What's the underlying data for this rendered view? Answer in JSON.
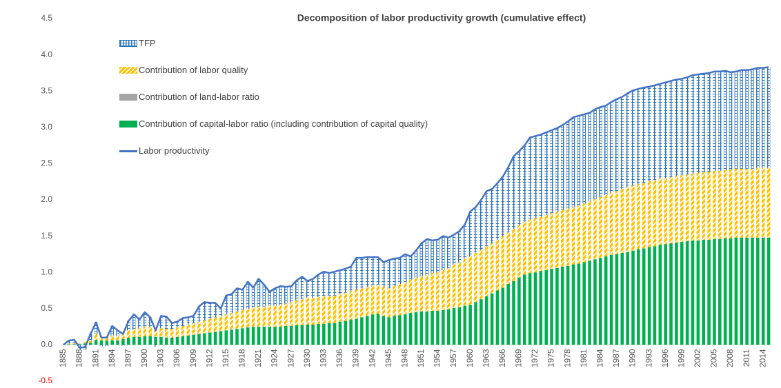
{
  "chart_data": {
    "type": "stacked_bar_line",
    "title": "Decomposition of labor productivity growth (cumulative effect)",
    "categories": [
      1885,
      null,
      null,
      1888,
      null,
      null,
      1891,
      null,
      null,
      1894,
      null,
      null,
      1897,
      null,
      null,
      1900,
      null,
      null,
      1903,
      null,
      null,
      1906,
      null,
      null,
      1909,
      null,
      null,
      1912,
      null,
      null,
      1915,
      null,
      null,
      1918,
      null,
      null,
      1921,
      null,
      null,
      1924,
      null,
      null,
      1927,
      null,
      null,
      1930,
      null,
      null,
      1933,
      null,
      null,
      1936,
      null,
      null,
      1939,
      null,
      null,
      1942,
      null,
      null,
      1945,
      null,
      null,
      1948,
      null,
      null,
      1951,
      null,
      null,
      1954,
      null,
      null,
      1957,
      null,
      null,
      1960,
      null,
      null,
      1963,
      null,
      null,
      1966,
      null,
      null,
      1969,
      null,
      null,
      1972,
      null,
      null,
      1975,
      null,
      null,
      1978,
      null,
      null,
      1981,
      null,
      null,
      1984,
      null,
      null,
      1987,
      null,
      null,
      1990,
      null,
      null,
      1993,
      null,
      null,
      1996,
      null,
      null,
      1999,
      null,
      null,
      2002,
      null,
      null,
      2005,
      null,
      null,
      2008,
      null,
      null,
      2011,
      null,
      null,
      2014,
      null
    ],
    "series": [
      {
        "name": "TFP",
        "type": "bar",
        "pattern": "grid",
        "color": "#2e75b6",
        "values": [
          0,
          0.04,
          0.05,
          -0.06,
          -0.07,
          0.09,
          0.16,
          -0.02,
          -0.02,
          0.13,
          0.08,
          -0.01,
          0.13,
          0.2,
          0.12,
          0.2,
          0.13,
          -0.03,
          0.17,
          0.17,
          0.08,
          0.08,
          0.11,
          0.1,
          0.1,
          0.21,
          0.25,
          0.22,
          0.2,
          0.1,
          0.26,
          0.26,
          0.32,
          0.28,
          0.37,
          0.27,
          0.38,
          0.3,
          0.19,
          0.24,
          0.26,
          0.23,
          0.22,
          0.28,
          0.31,
          0.23,
          0.26,
          0.31,
          0.34,
          0.31,
          0.33,
          0.33,
          0.33,
          0.34,
          0.44,
          0.42,
          0.41,
          0.39,
          0.38,
          0.34,
          0.39,
          0.38,
          0.36,
          0.39,
          0.32,
          0.38,
          0.45,
          0.5,
          0.45,
          0.45,
          0.47,
          0.42,
          0.41,
          0.43,
          0.47,
          0.62,
          0.63,
          0.69,
          0.76,
          0.75,
          0.78,
          0.82,
          0.9,
          1.0,
          1.02,
          1.05,
          1.13,
          1.13,
          1.13,
          1.14,
          1.14,
          1.15,
          1.17,
          1.2,
          1.24,
          1.24,
          1.23,
          1.22,
          1.24,
          1.24,
          1.23,
          1.25,
          1.27,
          1.27,
          1.3,
          1.31,
          1.31,
          1.32,
          1.3,
          1.31,
          1.31,
          1.32,
          1.33,
          1.33,
          1.33,
          1.34,
          1.36,
          1.36,
          1.36,
          1.36,
          1.37,
          1.37,
          1.37,
          1.34,
          1.34,
          1.36,
          1.36,
          1.37,
          1.38,
          1.38,
          1.39
        ]
      },
      {
        "name": "Contribution of labor quality",
        "type": "bar",
        "pattern": "diagonal",
        "color": "#ffc000",
        "values": [
          0,
          0.01,
          0.01,
          0.01,
          0.02,
          0.03,
          0.08,
          0.06,
          0.06,
          0.07,
          0.06,
          0.08,
          0.1,
          0.11,
          0.12,
          0.13,
          0.13,
          0.12,
          0.12,
          0.12,
          0.12,
          0.13,
          0.14,
          0.15,
          0.16,
          0.17,
          0.18,
          0.19,
          0.2,
          0.21,
          0.22,
          0.23,
          0.24,
          0.25,
          0.26,
          0.27,
          0.28,
          0.28,
          0.29,
          0.29,
          0.3,
          0.31,
          0.33,
          0.34,
          0.36,
          0.37,
          0.37,
          0.37,
          0.38,
          0.38,
          0.38,
          0.38,
          0.39,
          0.39,
          0.4,
          0.4,
          0.4,
          0.4,
          0.4,
          0.4,
          0.4,
          0.41,
          0.43,
          0.44,
          0.46,
          0.47,
          0.49,
          0.5,
          0.52,
          0.53,
          0.55,
          0.57,
          0.6,
          0.62,
          0.65,
          0.67,
          0.68,
          0.68,
          0.69,
          0.69,
          0.7,
          0.71,
          0.71,
          0.72,
          0.72,
          0.73,
          0.74,
          0.75,
          0.75,
          0.76,
          0.77,
          0.78,
          0.78,
          0.79,
          0.79,
          0.8,
          0.81,
          0.82,
          0.83,
          0.84,
          0.85,
          0.86,
          0.87,
          0.88,
          0.89,
          0.9,
          0.9,
          0.9,
          0.91,
          0.91,
          0.91,
          0.91,
          0.91,
          0.92,
          0.92,
          0.92,
          0.92,
          0.93,
          0.93,
          0.94,
          0.94,
          0.94,
          0.94,
          0.95,
          0.95,
          0.95,
          0.95,
          0.95,
          0.96,
          0.96,
          0.96
        ]
      },
      {
        "name": "Contribution of land-labor ratio",
        "type": "bar",
        "color": "#a5a5a5",
        "values": [
          0,
          0,
          0,
          0,
          0,
          0,
          0,
          0,
          0,
          0,
          0,
          0,
          0,
          0,
          0,
          0,
          0,
          0,
          0,
          0,
          0,
          0,
          0,
          0,
          0,
          0,
          0,
          0,
          0,
          0,
          0,
          0,
          0,
          0,
          0,
          0,
          0,
          0,
          0,
          0,
          0,
          0,
          0,
          0,
          0,
          0,
          0,
          0,
          0,
          0,
          0,
          0,
          0,
          0,
          0,
          0,
          0,
          0,
          0,
          0,
          0,
          0,
          0,
          0,
          0,
          0,
          0,
          0,
          0,
          0,
          0,
          0,
          0,
          0,
          0,
          0,
          0,
          0,
          0,
          0,
          0,
          0,
          0,
          0,
          0,
          0,
          0,
          0,
          0,
          0,
          0,
          0,
          0,
          0,
          0,
          0,
          0,
          0,
          0,
          0,
          0,
          0,
          0,
          0,
          0,
          0,
          0,
          0,
          0,
          0,
          0,
          0,
          0,
          0,
          0,
          0,
          0,
          0,
          0,
          0,
          0,
          0,
          0,
          0,
          0,
          0,
          0,
          0,
          0,
          0,
          0
        ]
      },
      {
        "name": "Contribution of capital-labor ratio (including contribution of capital quality)",
        "type": "bar",
        "color": "#00b050",
        "values": [
          0,
          0.01,
          0.01,
          0.01,
          0.02,
          0.03,
          0.07,
          0.06,
          0.06,
          0.06,
          0.06,
          0.08,
          0.1,
          0.11,
          0.11,
          0.12,
          0.12,
          0.11,
          0.11,
          0.1,
          0.1,
          0.11,
          0.12,
          0.13,
          0.14,
          0.15,
          0.16,
          0.17,
          0.18,
          0.19,
          0.2,
          0.21,
          0.22,
          0.23,
          0.24,
          0.25,
          0.25,
          0.25,
          0.25,
          0.25,
          0.25,
          0.26,
          0.26,
          0.27,
          0.27,
          0.28,
          0.28,
          0.29,
          0.29,
          0.3,
          0.3,
          0.32,
          0.33,
          0.35,
          0.36,
          0.38,
          0.4,
          0.42,
          0.43,
          0.4,
          0.38,
          0.4,
          0.41,
          0.42,
          0.44,
          0.45,
          0.46,
          0.46,
          0.47,
          0.47,
          0.48,
          0.49,
          0.51,
          0.52,
          0.54,
          0.55,
          0.59,
          0.63,
          0.67,
          0.71,
          0.75,
          0.79,
          0.84,
          0.88,
          0.93,
          0.97,
          0.99,
          1.0,
          1.02,
          1.03,
          1.05,
          1.06,
          1.08,
          1.09,
          1.11,
          1.12,
          1.14,
          1.16,
          1.18,
          1.2,
          1.22,
          1.24,
          1.25,
          1.27,
          1.28,
          1.3,
          1.32,
          1.33,
          1.35,
          1.36,
          1.38,
          1.39,
          1.4,
          1.41,
          1.42,
          1.43,
          1.44,
          1.44,
          1.45,
          1.45,
          1.46,
          1.46,
          1.47,
          1.47,
          1.48,
          1.48,
          1.48,
          1.48,
          1.48,
          1.48,
          1.48
        ]
      },
      {
        "name": "Labor productivity",
        "type": "line",
        "color": "#4472c4",
        "values": [
          0,
          0.06,
          0.07,
          -0.04,
          -0.03,
          0.15,
          0.31,
          0.1,
          0.1,
          0.26,
          0.2,
          0.15,
          0.33,
          0.42,
          0.35,
          0.45,
          0.38,
          0.2,
          0.4,
          0.39,
          0.3,
          0.32,
          0.37,
          0.38,
          0.4,
          0.53,
          0.59,
          0.58,
          0.58,
          0.5,
          0.68,
          0.7,
          0.78,
          0.76,
          0.87,
          0.79,
          0.91,
          0.83,
          0.73,
          0.78,
          0.81,
          0.8,
          0.81,
          0.89,
          0.94,
          0.88,
          0.91,
          0.97,
          1.01,
          0.99,
          1.01,
          1.03,
          1.05,
          1.08,
          1.2,
          1.2,
          1.21,
          1.21,
          1.21,
          1.14,
          1.17,
          1.19,
          1.2,
          1.25,
          1.22,
          1.3,
          1.4,
          1.46,
          1.44,
          1.45,
          1.5,
          1.48,
          1.52,
          1.57,
          1.66,
          1.84,
          1.9,
          2.0,
          2.12,
          2.15,
          2.23,
          2.32,
          2.45,
          2.6,
          2.67,
          2.75,
          2.86,
          2.88,
          2.9,
          2.93,
          2.96,
          2.99,
          3.03,
          3.08,
          3.14,
          3.16,
          3.18,
          3.2,
          3.25,
          3.28,
          3.3,
          3.35,
          3.39,
          3.42,
          3.47,
          3.51,
          3.53,
          3.55,
          3.56,
          3.58,
          3.6,
          3.62,
          3.64,
          3.66,
          3.67,
          3.69,
          3.72,
          3.73,
          3.74,
          3.75,
          3.77,
          3.77,
          3.78,
          3.76,
          3.77,
          3.79,
          3.79,
          3.8,
          3.82,
          3.82,
          3.83
        ]
      }
    ],
    "ylim": [
      -0.5,
      4.5
    ],
    "yticks": [
      -0.5,
      {
        "value": 0,
        "label": "0.0"
      },
      0.5,
      {
        "value": 1,
        "label": "1.0"
      },
      1.5,
      {
        "value": 2,
        "label": "2.0"
      },
      2.5,
      {
        "value": 3,
        "label": "3.0"
      },
      3.5,
      {
        "value": 4,
        "label": "4.0"
      },
      4.5
    ],
    "negative_tick_color": "#ff0000",
    "grid": false,
    "legend": "upper left"
  }
}
